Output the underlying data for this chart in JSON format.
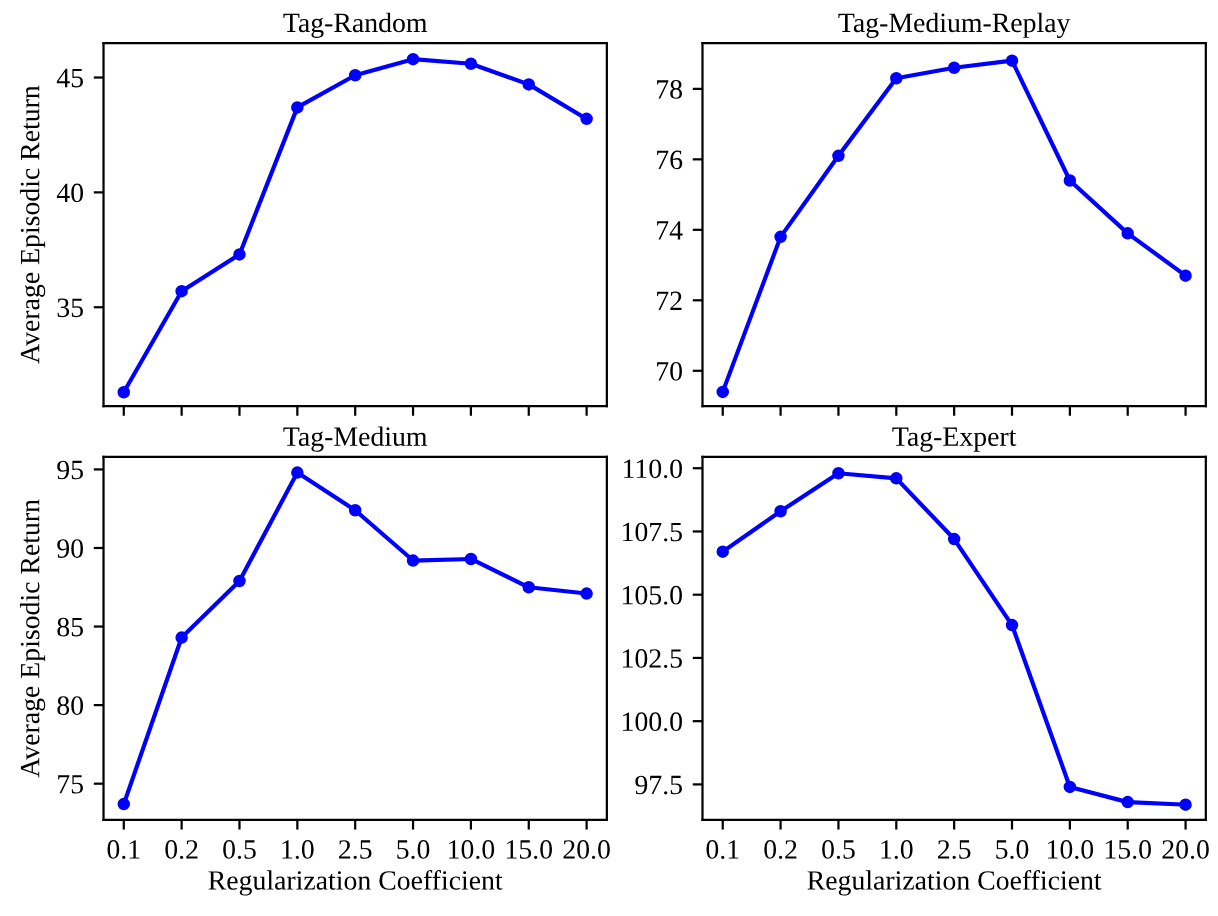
{
  "chart_data": [
    {
      "type": "line",
      "title": "Tag-Random",
      "ylabel": "Average Episodic Return",
      "categories": [
        "0.1",
        "0.2",
        "0.5",
        "1.0",
        "2.5",
        "5.0",
        "10.0",
        "15.0",
        "20.0"
      ],
      "series": [
        {
          "color": "#0000ff",
          "values": [
            31.3,
            35.7,
            37.3,
            43.7,
            45.1,
            45.8,
            45.6,
            44.7,
            43.2
          ]
        }
      ],
      "ylim": [
        30.7,
        46.5
      ],
      "yticks": [
        35,
        40,
        45
      ],
      "tick_labels": "y",
      "marker": "circle",
      "line_style": "solid",
      "grid": false,
      "legend": false
    },
    {
      "type": "line",
      "title": "Tag-Medium-Replay",
      "categories": [
        "0.1",
        "0.2",
        "0.5",
        "1.0",
        "2.5",
        "5.0",
        "10.0",
        "15.0",
        "20.0"
      ],
      "series": [
        {
          "color": "#0000ff",
          "values": [
            69.4,
            73.8,
            76.1,
            78.3,
            78.6,
            78.8,
            75.4,
            73.9,
            72.7
          ]
        }
      ],
      "ylim": [
        69.0,
        79.3
      ],
      "yticks": [
        70,
        72,
        74,
        76,
        78
      ],
      "tick_labels": "y",
      "marker": "circle",
      "line_style": "solid",
      "grid": false,
      "legend": false
    },
    {
      "type": "line",
      "title": "Tag-Medium",
      "xlabel": "Regularization Coefficient",
      "ylabel": "Average Episodic Return",
      "categories": [
        "0.1",
        "0.2",
        "0.5",
        "1.0",
        "2.5",
        "5.0",
        "10.0",
        "15.0",
        "20.0"
      ],
      "series": [
        {
          "color": "#0000ff",
          "values": [
            73.7,
            84.3,
            87.9,
            94.8,
            92.4,
            89.2,
            89.3,
            87.5,
            87.1
          ]
        }
      ],
      "ylim": [
        72.7,
        95.8
      ],
      "yticks": [
        75,
        80,
        85,
        90,
        95
      ],
      "marker": "circle",
      "line_style": "solid",
      "grid": false,
      "legend": false
    },
    {
      "type": "line",
      "title": "Tag-Expert",
      "xlabel": "Regularization Coefficient",
      "categories": [
        "0.1",
        "0.2",
        "0.5",
        "1.0",
        "2.5",
        "5.0",
        "10.0",
        "15.0",
        "20.0"
      ],
      "series": [
        {
          "color": "#0000ff",
          "values": [
            106.7,
            108.3,
            109.8,
            109.6,
            107.2,
            103.8,
            97.4,
            96.8,
            96.7
          ]
        }
      ],
      "ylim": [
        96.1,
        110.45
      ],
      "yticks": [
        {
          "value": 97.5,
          "label": "97.5"
        },
        {
          "value": 100,
          "label": "100.0"
        },
        {
          "value": 102.5,
          "label": "102.5"
        },
        {
          "value": 105,
          "label": "105.0"
        },
        {
          "value": 107.5,
          "label": "107.5"
        },
        {
          "value": 110,
          "label": "110.0"
        }
      ],
      "marker": "circle",
      "line_style": "solid",
      "grid": false,
      "legend": false
    }
  ]
}
